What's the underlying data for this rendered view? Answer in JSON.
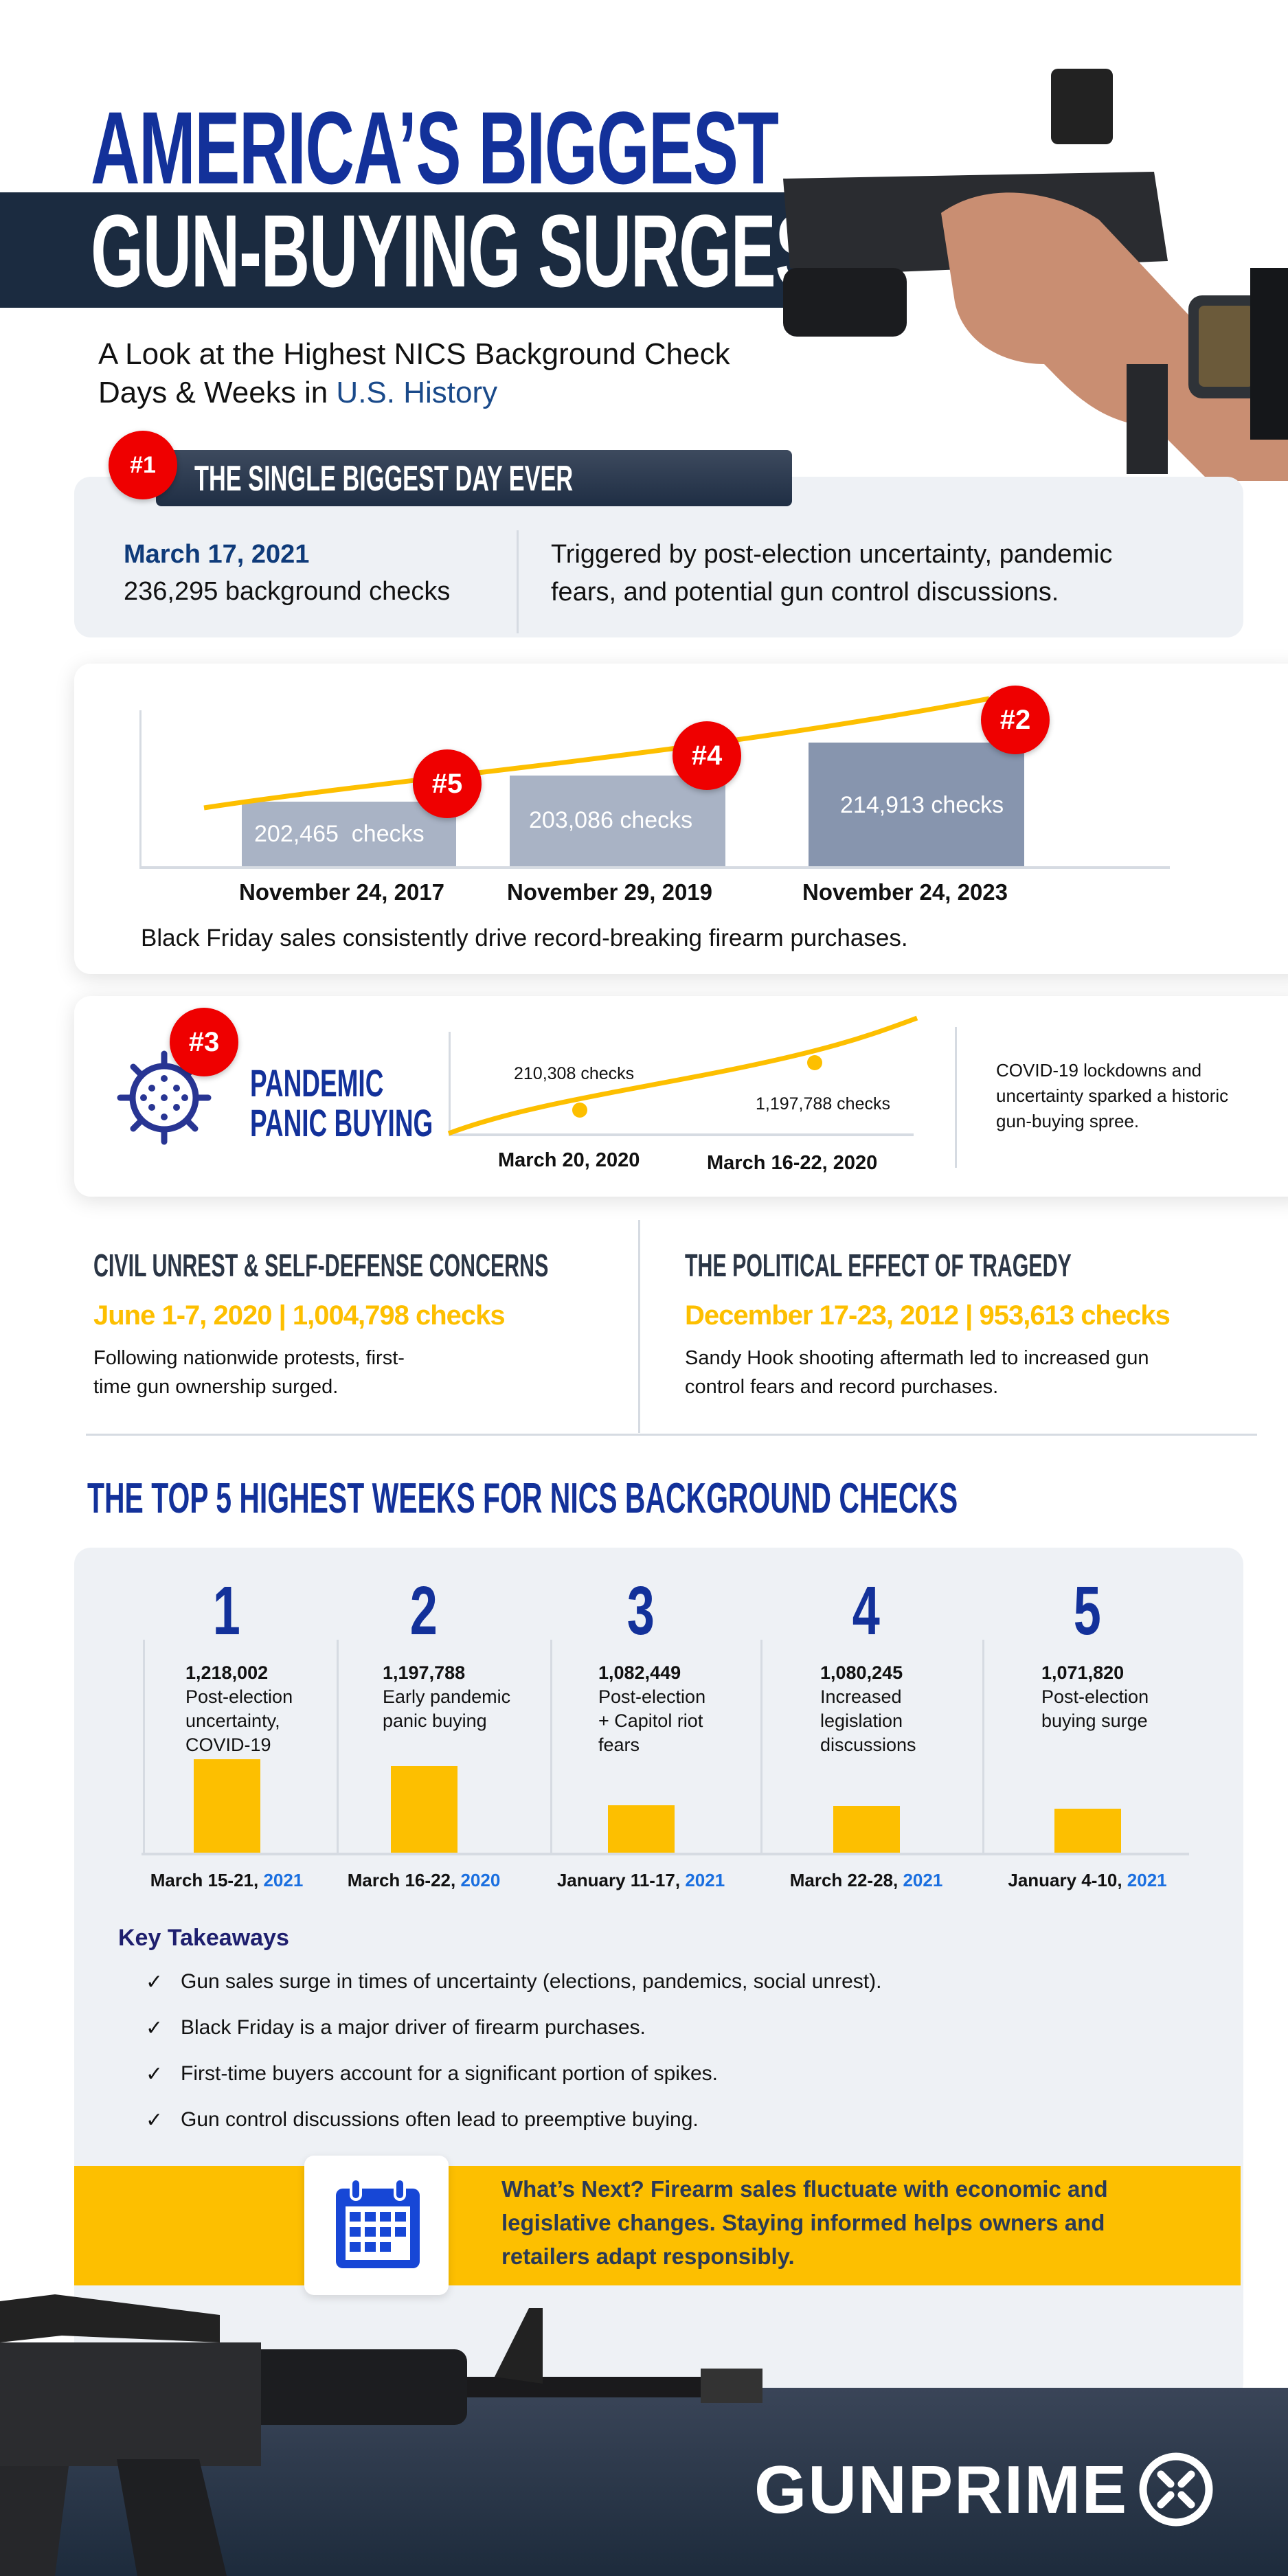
{
  "header": {
    "title_line1": "AMERICA’S BIGGEST",
    "title_line2": "GUN-BUYING SURGES",
    "subtitle_line1": "A Look at the Highest NICS Background Check",
    "subtitle_line2_prefix": "Days & Weeks in ",
    "subtitle_line2_highlight": "U.S. History"
  },
  "biggest_day": {
    "badge": "#1",
    "heading": "THE SINGLE BIGGEST DAY EVER",
    "date": "March 17, 2021",
    "count": "236,295 background checks",
    "description_line1": "Triggered by post-election uncertainty, pandemic",
    "description_line2": "fears, and potential gun control discussions."
  },
  "black_friday": {
    "bars": [
      {
        "badge": "#5",
        "label": "202,465  checks",
        "date": "November 24, 2017",
        "value": 202465
      },
      {
        "badge": "#4",
        "label": "203,086 checks",
        "date": "November 29, 2019",
        "value": 203086
      },
      {
        "badge": "#2",
        "label": "214,913 checks",
        "date": "November 24, 2023",
        "value": 214913
      }
    ],
    "caption": "Black Friday sales consistently drive record-breaking firearm purchases."
  },
  "pandemic": {
    "badge": "#3",
    "title_line1": "PANDEMIC",
    "title_line2": "PANIC BUYING",
    "points": [
      {
        "label": "210,308 checks",
        "date": "March 20, 2020"
      },
      {
        "label": "1,197,788 checks",
        "date": "March 16-22, 2020"
      }
    ],
    "description": [
      "COVID-19 lockdowns and",
      "uncertainty sparked a historic",
      "gun-buying spree."
    ],
    "icon": "virus-icon"
  },
  "civil_unrest": {
    "heading": "CIVIL UNREST & SELF-DEFENSE CONCERNS",
    "highlight": "June 1-7, 2020 | 1,004,798 checks",
    "body": [
      "Following nationwide protests, first-",
      "time gun ownership surged."
    ]
  },
  "tragedy": {
    "heading": "THE POLITICAL EFFECT OF TRAGEDY",
    "highlight": "December 17-23, 2012 | 953,613 checks",
    "body": [
      "Sandy Hook shooting aftermath led to increased gun",
      "control fears and record purchases."
    ]
  },
  "top5": {
    "heading": "THE TOP 5 HIGHEST WEEKS FOR NICS BACKGROUND CHECKS",
    "weeks": [
      {
        "rank": "1",
        "count": "1,218,002",
        "desc": [
          "Post-election",
          "uncertainty,",
          "COVID-19"
        ],
        "date": "March 15-21, ",
        "year": "2021",
        "value": 1218002
      },
      {
        "rank": "2",
        "count": "1,197,788",
        "desc": [
          "Early pandemic",
          "panic buying"
        ],
        "date": "March 16-22, ",
        "year": "2020",
        "value": 1197788
      },
      {
        "rank": "3",
        "count": "1,082,449",
        "desc": [
          "Post-election",
          "+ Capitol riot",
          "fears"
        ],
        "date": "January 11-17, ",
        "year": "2021",
        "value": 1082449
      },
      {
        "rank": "4",
        "count": "1,080,245",
        "desc": [
          "Increased",
          "legislation",
          "discussions"
        ],
        "date": "March 22-28, ",
        "year": "2021",
        "value": 1080245
      },
      {
        "rank": "5",
        "count": "1,071,820",
        "desc": [
          "Post-election",
          "buying surge"
        ],
        "date": "January 4-10, ",
        "year": "2021",
        "value": 1071820
      }
    ]
  },
  "takeaways": {
    "heading": "Key Takeaways",
    "check": "✓",
    "items": [
      "Gun sales surge in times of uncertainty (elections, pandemics, social unrest).",
      "Black Friday is a major driver of firearm purchases.",
      "First-time buyers account for a significant portion of spikes.",
      "Gun control discussions often lead to preemptive buying."
    ]
  },
  "whats_next": {
    "lines": [
      "What’s Next? Firearm sales fluctuate with economic and",
      "legislative changes. Staying informed helps owners and",
      "retailers adapt responsibly."
    ],
    "icon": "calendar-icon"
  },
  "footer": {
    "logo": "GUNPRIME"
  },
  "colors": {
    "navy": "#1b2b40",
    "title_blue": "#13319a",
    "yellow": "#fdbf00",
    "red": "#ef0000",
    "panel": "#eef1f5",
    "year_blue": "#1a6fe0"
  }
}
